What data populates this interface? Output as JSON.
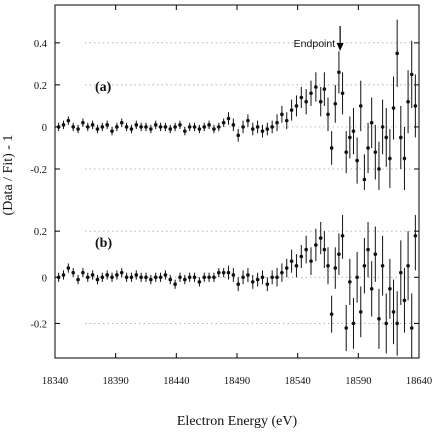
{
  "chart_data": {
    "type": "scatter",
    "xlabel": "Electron Energy (eV)",
    "ylabel": "(Data / Fit) - 1",
    "xlim": [
      18340,
      18640
    ],
    "x_ticks": [
      "18340",
      "18390",
      "18440",
      "18490",
      "18540",
      "18590",
      "18640"
    ],
    "x_tick_values": [
      18340,
      18390,
      18440,
      18490,
      18540,
      18590,
      18640
    ],
    "annotation": {
      "text": "Endpoint",
      "x": 18575
    },
    "grid": "horizontal dotted",
    "panels": [
      {
        "label": "(a)",
        "ylim": [
          -0.3,
          0.58
        ],
        "y_ticks": [
          "0.4",
          "0.2",
          "0",
          "-0.2"
        ],
        "y_tick_values": [
          0.4,
          0.2,
          0,
          -0.2
        ],
        "points": [
          [
            18343,
            0.0,
            0.02
          ],
          [
            18347,
            0.01,
            0.02
          ],
          [
            18351,
            0.03,
            0.02
          ],
          [
            18355,
            0.0,
            0.02
          ],
          [
            18359,
            -0.01,
            0.02
          ],
          [
            18363,
            0.02,
            0.02
          ],
          [
            18367,
            0.0,
            0.02
          ],
          [
            18371,
            0.01,
            0.02
          ],
          [
            18375,
            -0.01,
            0.02
          ],
          [
            18379,
            0.0,
            0.02
          ],
          [
            18383,
            0.01,
            0.02
          ],
          [
            18387,
            -0.02,
            0.02
          ],
          [
            18391,
            0.0,
            0.02
          ],
          [
            18395,
            0.02,
            0.02
          ],
          [
            18399,
            0.0,
            0.02
          ],
          [
            18403,
            -0.01,
            0.02
          ],
          [
            18407,
            0.01,
            0.02
          ],
          [
            18411,
            0.0,
            0.02
          ],
          [
            18415,
            0.0,
            0.02
          ],
          [
            18419,
            -0.01,
            0.02
          ],
          [
            18423,
            0.01,
            0.02
          ],
          [
            18427,
            0.0,
            0.02
          ],
          [
            18431,
            0.0,
            0.02
          ],
          [
            18435,
            -0.01,
            0.02
          ],
          [
            18439,
            0.0,
            0.02
          ],
          [
            18443,
            0.01,
            0.02
          ],
          [
            18447,
            -0.02,
            0.02
          ],
          [
            18451,
            0.0,
            0.02
          ],
          [
            18455,
            0.0,
            0.02
          ],
          [
            18459,
            -0.01,
            0.02
          ],
          [
            18463,
            0.0,
            0.02
          ],
          [
            18467,
            0.01,
            0.02
          ],
          [
            18471,
            -0.01,
            0.02
          ],
          [
            18475,
            0.0,
            0.02
          ],
          [
            18479,
            0.02,
            0.02
          ],
          [
            18483,
            0.04,
            0.03
          ],
          [
            18487,
            0.01,
            0.03
          ],
          [
            18491,
            -0.04,
            0.03
          ],
          [
            18495,
            0.0,
            0.03
          ],
          [
            18499,
            0.03,
            0.03
          ],
          [
            18503,
            -0.01,
            0.03
          ],
          [
            18507,
            0.0,
            0.03
          ],
          [
            18511,
            -0.02,
            0.03
          ],
          [
            18515,
            -0.01,
            0.03
          ],
          [
            18519,
            0.0,
            0.03
          ],
          [
            18523,
            0.02,
            0.04
          ],
          [
            18527,
            0.06,
            0.04
          ],
          [
            18531,
            0.03,
            0.04
          ],
          [
            18535,
            0.08,
            0.05
          ],
          [
            18539,
            0.1,
            0.05
          ],
          [
            18543,
            0.14,
            0.05
          ],
          [
            18547,
            0.12,
            0.06
          ],
          [
            18551,
            0.16,
            0.06
          ],
          [
            18555,
            0.19,
            0.07
          ],
          [
            18559,
            0.12,
            0.07
          ],
          [
            18562,
            0.18,
            0.08
          ],
          [
            18565,
            0.06,
            0.08
          ],
          [
            18568,
            -0.1,
            0.08
          ],
          [
            18571,
            0.11,
            0.09
          ],
          [
            18574,
            0.26,
            0.1
          ],
          [
            18577,
            0.16,
            0.1
          ],
          [
            18580,
            -0.12,
            0.1
          ],
          [
            18583,
            -0.05,
            0.1
          ],
          [
            18586,
            -0.02,
            0.11
          ],
          [
            18589,
            -0.16,
            0.11
          ],
          [
            18592,
            0.1,
            0.12
          ],
          [
            18595,
            -0.25,
            0.12
          ],
          [
            18598,
            -0.1,
            0.12
          ],
          [
            18601,
            0.02,
            0.12
          ],
          [
            18604,
            -0.12,
            0.13
          ],
          [
            18607,
            -0.2,
            0.13
          ],
          [
            18610,
            0.0,
            0.13
          ],
          [
            18613,
            -0.05,
            0.14
          ],
          [
            18616,
            -0.15,
            0.14
          ],
          [
            18619,
            0.09,
            0.15
          ],
          [
            18622,
            0.35,
            0.16
          ],
          [
            18625,
            -0.05,
            0.15
          ],
          [
            18628,
            -0.15,
            0.15
          ],
          [
            18631,
            0.12,
            0.15
          ],
          [
            18634,
            0.25,
            0.16
          ],
          [
            18637,
            0.1,
            0.15
          ]
        ]
      },
      {
        "label": "(b)",
        "ylim": [
          -0.35,
          0.27
        ],
        "y_ticks": [
          "0.2",
          "0",
          "-0.2"
        ],
        "y_tick_values": [
          0.2,
          0,
          -0.2
        ],
        "points": [
          [
            18343,
            0.0,
            0.02
          ],
          [
            18347,
            0.01,
            0.02
          ],
          [
            18351,
            0.04,
            0.02
          ],
          [
            18355,
            0.02,
            0.02
          ],
          [
            18359,
            -0.01,
            0.02
          ],
          [
            18363,
            0.02,
            0.02
          ],
          [
            18367,
            0.0,
            0.02
          ],
          [
            18371,
            0.01,
            0.02
          ],
          [
            18375,
            -0.01,
            0.02
          ],
          [
            18379,
            0.0,
            0.02
          ],
          [
            18383,
            0.01,
            0.02
          ],
          [
            18387,
            0.0,
            0.02
          ],
          [
            18391,
            0.01,
            0.02
          ],
          [
            18395,
            0.02,
            0.02
          ],
          [
            18399,
            0.0,
            0.02
          ],
          [
            18403,
            0.0,
            0.02
          ],
          [
            18407,
            0.01,
            0.02
          ],
          [
            18411,
            0.0,
            0.02
          ],
          [
            18415,
            0.0,
            0.02
          ],
          [
            18419,
            -0.01,
            0.02
          ],
          [
            18423,
            0.0,
            0.02
          ],
          [
            18427,
            0.0,
            0.02
          ],
          [
            18431,
            0.01,
            0.02
          ],
          [
            18435,
            -0.01,
            0.02
          ],
          [
            18439,
            -0.03,
            0.02
          ],
          [
            18443,
            0.0,
            0.02
          ],
          [
            18447,
            -0.01,
            0.02
          ],
          [
            18451,
            0.0,
            0.02
          ],
          [
            18455,
            0.0,
            0.02
          ],
          [
            18459,
            -0.02,
            0.02
          ],
          [
            18463,
            0.0,
            0.02
          ],
          [
            18467,
            0.0,
            0.02
          ],
          [
            18471,
            0.0,
            0.02
          ],
          [
            18475,
            0.02,
            0.02
          ],
          [
            18479,
            0.02,
            0.02
          ],
          [
            18483,
            0.02,
            0.03
          ],
          [
            18487,
            0.01,
            0.03
          ],
          [
            18491,
            -0.03,
            0.03
          ],
          [
            18495,
            0.0,
            0.03
          ],
          [
            18499,
            0.01,
            0.03
          ],
          [
            18503,
            -0.02,
            0.03
          ],
          [
            18507,
            -0.01,
            0.03
          ],
          [
            18511,
            0.0,
            0.03
          ],
          [
            18515,
            -0.03,
            0.03
          ],
          [
            18519,
            0.0,
            0.03
          ],
          [
            18523,
            0.0,
            0.04
          ],
          [
            18527,
            0.02,
            0.04
          ],
          [
            18531,
            0.04,
            0.04
          ],
          [
            18535,
            0.07,
            0.05
          ],
          [
            18539,
            0.05,
            0.05
          ],
          [
            18543,
            0.09,
            0.05
          ],
          [
            18547,
            0.12,
            0.06
          ],
          [
            18551,
            0.07,
            0.06
          ],
          [
            18555,
            0.14,
            0.07
          ],
          [
            18559,
            0.17,
            0.07
          ],
          [
            18562,
            0.12,
            0.08
          ],
          [
            18565,
            0.05,
            0.08
          ],
          [
            18568,
            -0.16,
            0.08
          ],
          [
            18571,
            0.04,
            0.09
          ],
          [
            18574,
            0.1,
            0.09
          ],
          [
            18577,
            0.18,
            0.1
          ],
          [
            18580,
            -0.22,
            0.1
          ],
          [
            18583,
            -0.02,
            0.1
          ],
          [
            18586,
            -0.2,
            0.11
          ],
          [
            18589,
            0.0,
            0.11
          ],
          [
            18592,
            -0.15,
            0.11
          ],
          [
            18595,
            0.05,
            0.12
          ],
          [
            18598,
            0.12,
            0.12
          ],
          [
            18601,
            -0.05,
            0.12
          ],
          [
            18604,
            0.1,
            0.12
          ],
          [
            18607,
            -0.18,
            0.13
          ],
          [
            18610,
            0.05,
            0.13
          ],
          [
            18613,
            -0.2,
            0.13
          ],
          [
            18616,
            -0.05,
            0.13
          ],
          [
            18619,
            -0.15,
            0.14
          ],
          [
            18622,
            -0.2,
            0.14
          ],
          [
            18625,
            0.02,
            0.14
          ],
          [
            18628,
            -0.1,
            0.14
          ],
          [
            18631,
            0.05,
            0.15
          ],
          [
            18634,
            -0.22,
            0.15
          ],
          [
            18637,
            0.18,
            0.15
          ]
        ]
      }
    ]
  }
}
